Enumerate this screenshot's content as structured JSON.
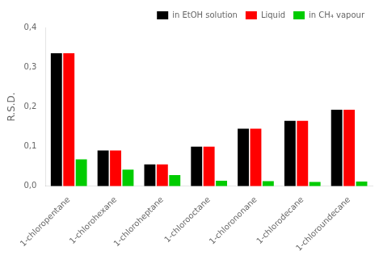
{
  "chart_data": {
    "type": "bar",
    "categories": [
      "1-chloropentane",
      "1-chlorohexane",
      "1-chloroheptane",
      "1-chlorooctane",
      "1-chlorononane",
      "1-chlorodecane",
      "1-chloroundecane"
    ],
    "series": [
      {
        "name": "in EtOH solution",
        "color": "#000000",
        "values": [
          0.335,
          0.09,
          0.055,
          0.1,
          0.145,
          0.165,
          0.193
        ]
      },
      {
        "name": "Liquid",
        "color": "#ff0000",
        "values": [
          0.335,
          0.09,
          0.055,
          0.1,
          0.145,
          0.165,
          0.193
        ]
      },
      {
        "name": "in CH₄ vapour",
        "color": "#00cc00",
        "values": [
          0.068,
          0.042,
          0.028,
          0.014,
          0.013,
          0.011,
          0.012
        ]
      }
    ],
    "ylabel": "R.S.D.",
    "ylim": [
      0,
      0.4
    ],
    "yticks": [
      {
        "value": 0.0,
        "label": "0,0"
      },
      {
        "value": 0.1,
        "label": "0,1"
      },
      {
        "value": 0.2,
        "label": "0,2"
      },
      {
        "value": 0.3,
        "label": "0,3"
      },
      {
        "value": 0.4,
        "label": "0,4"
      }
    ],
    "grid": false,
    "legend": "upper right"
  }
}
